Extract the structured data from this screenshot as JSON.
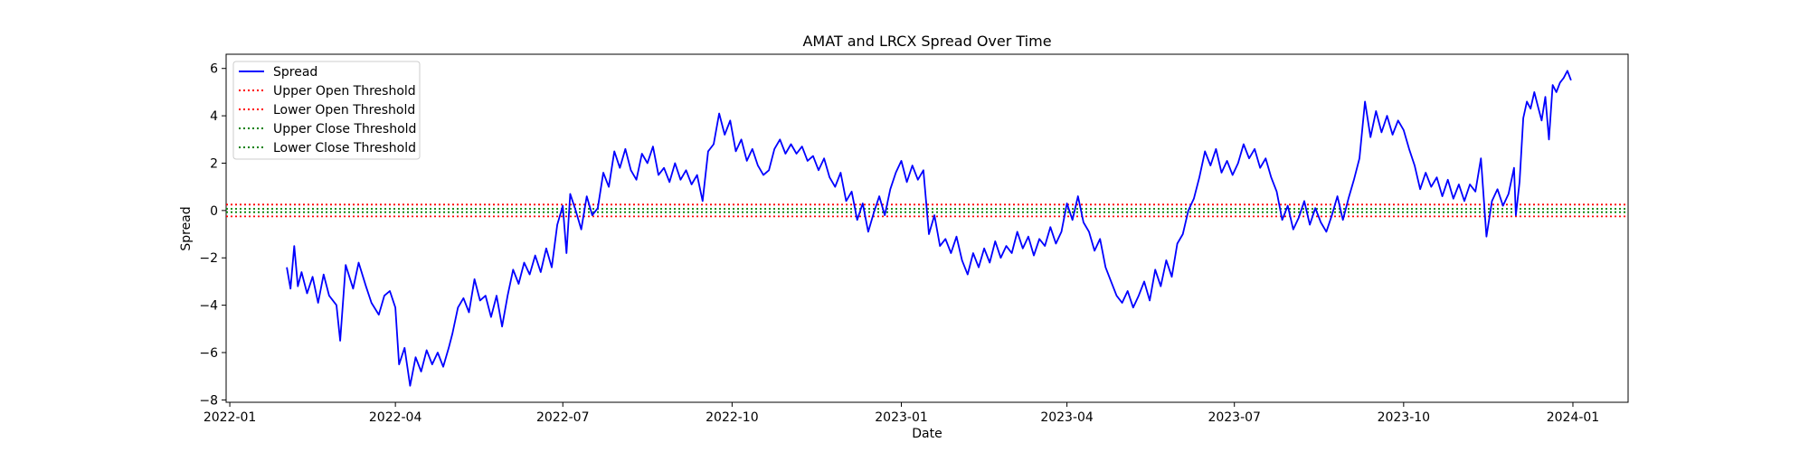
{
  "chart_data": {
    "type": "line",
    "title": "AMAT and LRCX Spread Over Time",
    "xlabel": "Date",
    "ylabel": "Spread",
    "xlim": [
      "2021-12-30",
      "2024-01-31"
    ],
    "ylim": [
      -8.1,
      6.6
    ],
    "x_ticks": [
      "2022-01",
      "2022-04",
      "2022-07",
      "2022-10",
      "2023-01",
      "2023-04",
      "2023-07",
      "2023-10",
      "2024-01"
    ],
    "y_ticks": [
      -8,
      -6,
      -4,
      -2,
      0,
      2,
      4,
      6
    ],
    "grid": false,
    "legend_position": "upper-left",
    "series": [
      {
        "name": "Spread",
        "color": "#0000ff",
        "style": "solid",
        "points": [
          [
            "2022-02-01",
            -2.4
          ],
          [
            "2022-02-03",
            -3.3
          ],
          [
            "2022-02-05",
            -1.5
          ],
          [
            "2022-02-07",
            -3.2
          ],
          [
            "2022-02-09",
            -2.6
          ],
          [
            "2022-02-12",
            -3.5
          ],
          [
            "2022-02-15",
            -2.8
          ],
          [
            "2022-02-18",
            -3.9
          ],
          [
            "2022-02-21",
            -2.7
          ],
          [
            "2022-02-24",
            -3.6
          ],
          [
            "2022-02-28",
            -4.0
          ],
          [
            "2022-03-02",
            -5.5
          ],
          [
            "2022-03-05",
            -2.3
          ],
          [
            "2022-03-09",
            -3.3
          ],
          [
            "2022-03-12",
            -2.2
          ],
          [
            "2022-03-16",
            -3.2
          ],
          [
            "2022-03-19",
            -3.9
          ],
          [
            "2022-03-23",
            -4.4
          ],
          [
            "2022-03-26",
            -3.6
          ],
          [
            "2022-03-29",
            -3.4
          ],
          [
            "2022-04-01",
            -4.1
          ],
          [
            "2022-04-03",
            -6.5
          ],
          [
            "2022-04-06",
            -5.8
          ],
          [
            "2022-04-09",
            -7.4
          ],
          [
            "2022-04-12",
            -6.2
          ],
          [
            "2022-04-15",
            -6.8
          ],
          [
            "2022-04-18",
            -5.9
          ],
          [
            "2022-04-21",
            -6.5
          ],
          [
            "2022-04-24",
            -6.0
          ],
          [
            "2022-04-27",
            -6.6
          ],
          [
            "2022-04-30",
            -5.8
          ],
          [
            "2022-05-02",
            -5.2
          ],
          [
            "2022-05-05",
            -4.1
          ],
          [
            "2022-05-08",
            -3.7
          ],
          [
            "2022-05-11",
            -4.3
          ],
          [
            "2022-05-14",
            -2.9
          ],
          [
            "2022-05-17",
            -3.8
          ],
          [
            "2022-05-20",
            -3.6
          ],
          [
            "2022-05-23",
            -4.5
          ],
          [
            "2022-05-26",
            -3.6
          ],
          [
            "2022-05-29",
            -4.9
          ],
          [
            "2022-06-01",
            -3.6
          ],
          [
            "2022-06-04",
            -2.5
          ],
          [
            "2022-06-07",
            -3.1
          ],
          [
            "2022-06-10",
            -2.2
          ],
          [
            "2022-06-13",
            -2.7
          ],
          [
            "2022-06-16",
            -1.9
          ],
          [
            "2022-06-19",
            -2.6
          ],
          [
            "2022-06-22",
            -1.6
          ],
          [
            "2022-06-25",
            -2.4
          ],
          [
            "2022-06-28",
            -0.6
          ],
          [
            "2022-07-01",
            0.2
          ],
          [
            "2022-07-03",
            -1.8
          ],
          [
            "2022-07-05",
            0.7
          ],
          [
            "2022-07-08",
            0.0
          ],
          [
            "2022-07-11",
            -0.8
          ],
          [
            "2022-07-14",
            0.6
          ],
          [
            "2022-07-17",
            -0.2
          ],
          [
            "2022-07-20",
            0.1
          ],
          [
            "2022-07-23",
            1.6
          ],
          [
            "2022-07-26",
            1.0
          ],
          [
            "2022-07-29",
            2.5
          ],
          [
            "2022-08-01",
            1.8
          ],
          [
            "2022-08-04",
            2.6
          ],
          [
            "2022-08-07",
            1.7
          ],
          [
            "2022-08-10",
            1.3
          ],
          [
            "2022-08-13",
            2.4
          ],
          [
            "2022-08-16",
            2.0
          ],
          [
            "2022-08-19",
            2.7
          ],
          [
            "2022-08-22",
            1.5
          ],
          [
            "2022-08-25",
            1.8
          ],
          [
            "2022-08-28",
            1.2
          ],
          [
            "2022-08-31",
            2.0
          ],
          [
            "2022-09-03",
            1.3
          ],
          [
            "2022-09-06",
            1.7
          ],
          [
            "2022-09-09",
            1.1
          ],
          [
            "2022-09-12",
            1.5
          ],
          [
            "2022-09-15",
            0.4
          ],
          [
            "2022-09-18",
            2.5
          ],
          [
            "2022-09-21",
            2.8
          ],
          [
            "2022-09-24",
            4.1
          ],
          [
            "2022-09-27",
            3.2
          ],
          [
            "2022-09-30",
            3.8
          ],
          [
            "2022-10-03",
            2.5
          ],
          [
            "2022-10-06",
            3.0
          ],
          [
            "2022-10-09",
            2.1
          ],
          [
            "2022-10-12",
            2.6
          ],
          [
            "2022-10-15",
            1.9
          ],
          [
            "2022-10-18",
            1.5
          ],
          [
            "2022-10-21",
            1.7
          ],
          [
            "2022-10-24",
            2.6
          ],
          [
            "2022-10-27",
            3.0
          ],
          [
            "2022-10-30",
            2.4
          ],
          [
            "2022-11-02",
            2.8
          ],
          [
            "2022-11-05",
            2.4
          ],
          [
            "2022-11-08",
            2.7
          ],
          [
            "2022-11-11",
            2.1
          ],
          [
            "2022-11-14",
            2.3
          ],
          [
            "2022-11-17",
            1.7
          ],
          [
            "2022-11-20",
            2.2
          ],
          [
            "2022-11-23",
            1.4
          ],
          [
            "2022-11-26",
            1.0
          ],
          [
            "2022-11-29",
            1.6
          ],
          [
            "2022-12-02",
            0.4
          ],
          [
            "2022-12-05",
            0.8
          ],
          [
            "2022-12-08",
            -0.4
          ],
          [
            "2022-12-11",
            0.3
          ],
          [
            "2022-12-14",
            -0.9
          ],
          [
            "2022-12-17",
            -0.1
          ],
          [
            "2022-12-20",
            0.6
          ],
          [
            "2022-12-23",
            -0.2
          ],
          [
            "2022-12-26",
            0.9
          ],
          [
            "2022-12-29",
            1.6
          ],
          [
            "2023-01-01",
            2.1
          ],
          [
            "2023-01-04",
            1.2
          ],
          [
            "2023-01-07",
            1.9
          ],
          [
            "2023-01-10",
            1.3
          ],
          [
            "2023-01-13",
            1.7
          ],
          [
            "2023-01-16",
            -1.0
          ],
          [
            "2023-01-19",
            -0.2
          ],
          [
            "2023-01-22",
            -1.5
          ],
          [
            "2023-01-25",
            -1.2
          ],
          [
            "2023-01-28",
            -1.8
          ],
          [
            "2023-01-31",
            -1.1
          ],
          [
            "2023-02-03",
            -2.1
          ],
          [
            "2023-02-06",
            -2.7
          ],
          [
            "2023-02-09",
            -1.8
          ],
          [
            "2023-02-12",
            -2.4
          ],
          [
            "2023-02-15",
            -1.6
          ],
          [
            "2023-02-18",
            -2.2
          ],
          [
            "2023-02-21",
            -1.3
          ],
          [
            "2023-02-24",
            -2.0
          ],
          [
            "2023-02-27",
            -1.5
          ],
          [
            "2023-03-02",
            -1.8
          ],
          [
            "2023-03-05",
            -0.9
          ],
          [
            "2023-03-08",
            -1.6
          ],
          [
            "2023-03-11",
            -1.1
          ],
          [
            "2023-03-14",
            -1.9
          ],
          [
            "2023-03-17",
            -1.2
          ],
          [
            "2023-03-20",
            -1.5
          ],
          [
            "2023-03-23",
            -0.7
          ],
          [
            "2023-03-26",
            -1.4
          ],
          [
            "2023-03-29",
            -0.9
          ],
          [
            "2023-04-01",
            0.3
          ],
          [
            "2023-04-04",
            -0.4
          ],
          [
            "2023-04-07",
            0.6
          ],
          [
            "2023-04-10",
            -0.5
          ],
          [
            "2023-04-13",
            -0.9
          ],
          [
            "2023-04-16",
            -1.7
          ],
          [
            "2023-04-19",
            -1.2
          ],
          [
            "2023-04-22",
            -2.4
          ],
          [
            "2023-04-25",
            -3.0
          ],
          [
            "2023-04-28",
            -3.6
          ],
          [
            "2023-05-01",
            -3.9
          ],
          [
            "2023-05-04",
            -3.4
          ],
          [
            "2023-05-07",
            -4.1
          ],
          [
            "2023-05-10",
            -3.6
          ],
          [
            "2023-05-13",
            -3.0
          ],
          [
            "2023-05-16",
            -3.8
          ],
          [
            "2023-05-19",
            -2.5
          ],
          [
            "2023-05-22",
            -3.2
          ],
          [
            "2023-05-25",
            -2.1
          ],
          [
            "2023-05-28",
            -2.8
          ],
          [
            "2023-05-31",
            -1.4
          ],
          [
            "2023-06-03",
            -1.0
          ],
          [
            "2023-06-06",
            0.0
          ],
          [
            "2023-06-09",
            0.5
          ],
          [
            "2023-06-12",
            1.4
          ],
          [
            "2023-06-15",
            2.5
          ],
          [
            "2023-06-18",
            1.9
          ],
          [
            "2023-06-21",
            2.6
          ],
          [
            "2023-06-24",
            1.6
          ],
          [
            "2023-06-27",
            2.1
          ],
          [
            "2023-06-30",
            1.5
          ],
          [
            "2023-07-03",
            2.0
          ],
          [
            "2023-07-06",
            2.8
          ],
          [
            "2023-07-09",
            2.2
          ],
          [
            "2023-07-12",
            2.6
          ],
          [
            "2023-07-15",
            1.8
          ],
          [
            "2023-07-18",
            2.2
          ],
          [
            "2023-07-21",
            1.4
          ],
          [
            "2023-07-24",
            0.8
          ],
          [
            "2023-07-27",
            -0.4
          ],
          [
            "2023-07-30",
            0.2
          ],
          [
            "2023-08-02",
            -0.8
          ],
          [
            "2023-08-05",
            -0.3
          ],
          [
            "2023-08-08",
            0.4
          ],
          [
            "2023-08-11",
            -0.6
          ],
          [
            "2023-08-14",
            0.1
          ],
          [
            "2023-08-17",
            -0.5
          ],
          [
            "2023-08-20",
            -0.9
          ],
          [
            "2023-08-23",
            -0.2
          ],
          [
            "2023-08-26",
            0.6
          ],
          [
            "2023-08-29",
            -0.4
          ],
          [
            "2023-09-01",
            0.5
          ],
          [
            "2023-09-04",
            1.3
          ],
          [
            "2023-09-07",
            2.2
          ],
          [
            "2023-09-10",
            4.6
          ],
          [
            "2023-09-13",
            3.1
          ],
          [
            "2023-09-16",
            4.2
          ],
          [
            "2023-09-19",
            3.3
          ],
          [
            "2023-09-22",
            4.0
          ],
          [
            "2023-09-25",
            3.2
          ],
          [
            "2023-09-28",
            3.8
          ],
          [
            "2023-10-01",
            3.4
          ],
          [
            "2023-10-04",
            2.6
          ],
          [
            "2023-10-07",
            1.9
          ],
          [
            "2023-10-10",
            0.9
          ],
          [
            "2023-10-13",
            1.6
          ],
          [
            "2023-10-16",
            1.0
          ],
          [
            "2023-10-19",
            1.4
          ],
          [
            "2023-10-22",
            0.6
          ],
          [
            "2023-10-25",
            1.3
          ],
          [
            "2023-10-28",
            0.5
          ],
          [
            "2023-10-31",
            1.1
          ],
          [
            "2023-11-03",
            0.4
          ],
          [
            "2023-11-06",
            1.1
          ],
          [
            "2023-11-09",
            0.8
          ],
          [
            "2023-11-12",
            2.2
          ],
          [
            "2023-11-15",
            -1.1
          ],
          [
            "2023-11-18",
            0.4
          ],
          [
            "2023-11-21",
            0.9
          ],
          [
            "2023-11-24",
            0.2
          ],
          [
            "2023-11-27",
            0.7
          ],
          [
            "2023-11-30",
            1.8
          ],
          [
            "2023-12-01",
            -0.2
          ],
          [
            "2023-12-03",
            1.2
          ],
          [
            "2023-12-05",
            3.9
          ],
          [
            "2023-12-07",
            4.6
          ],
          [
            "2023-12-09",
            4.3
          ],
          [
            "2023-12-11",
            5.0
          ],
          [
            "2023-12-13",
            4.4
          ],
          [
            "2023-12-15",
            3.8
          ],
          [
            "2023-12-17",
            4.8
          ],
          [
            "2023-12-19",
            3.0
          ],
          [
            "2023-12-21",
            5.3
          ],
          [
            "2023-12-23",
            5.0
          ],
          [
            "2023-12-25",
            5.4
          ],
          [
            "2023-12-27",
            5.6
          ],
          [
            "2023-12-29",
            5.9
          ],
          [
            "2023-12-31",
            5.5
          ]
        ]
      },
      {
        "name": "Upper Open Threshold",
        "color": "#ff0000",
        "style": "dotted",
        "constant": 0.25
      },
      {
        "name": "Lower Open Threshold",
        "color": "#ff0000",
        "style": "dotted",
        "constant": -0.25
      },
      {
        "name": "Upper Close Threshold",
        "color": "#008000",
        "style": "dotted",
        "constant": 0.07
      },
      {
        "name": "Lower Close Threshold",
        "color": "#008000",
        "style": "dotted",
        "constant": -0.07
      }
    ]
  }
}
